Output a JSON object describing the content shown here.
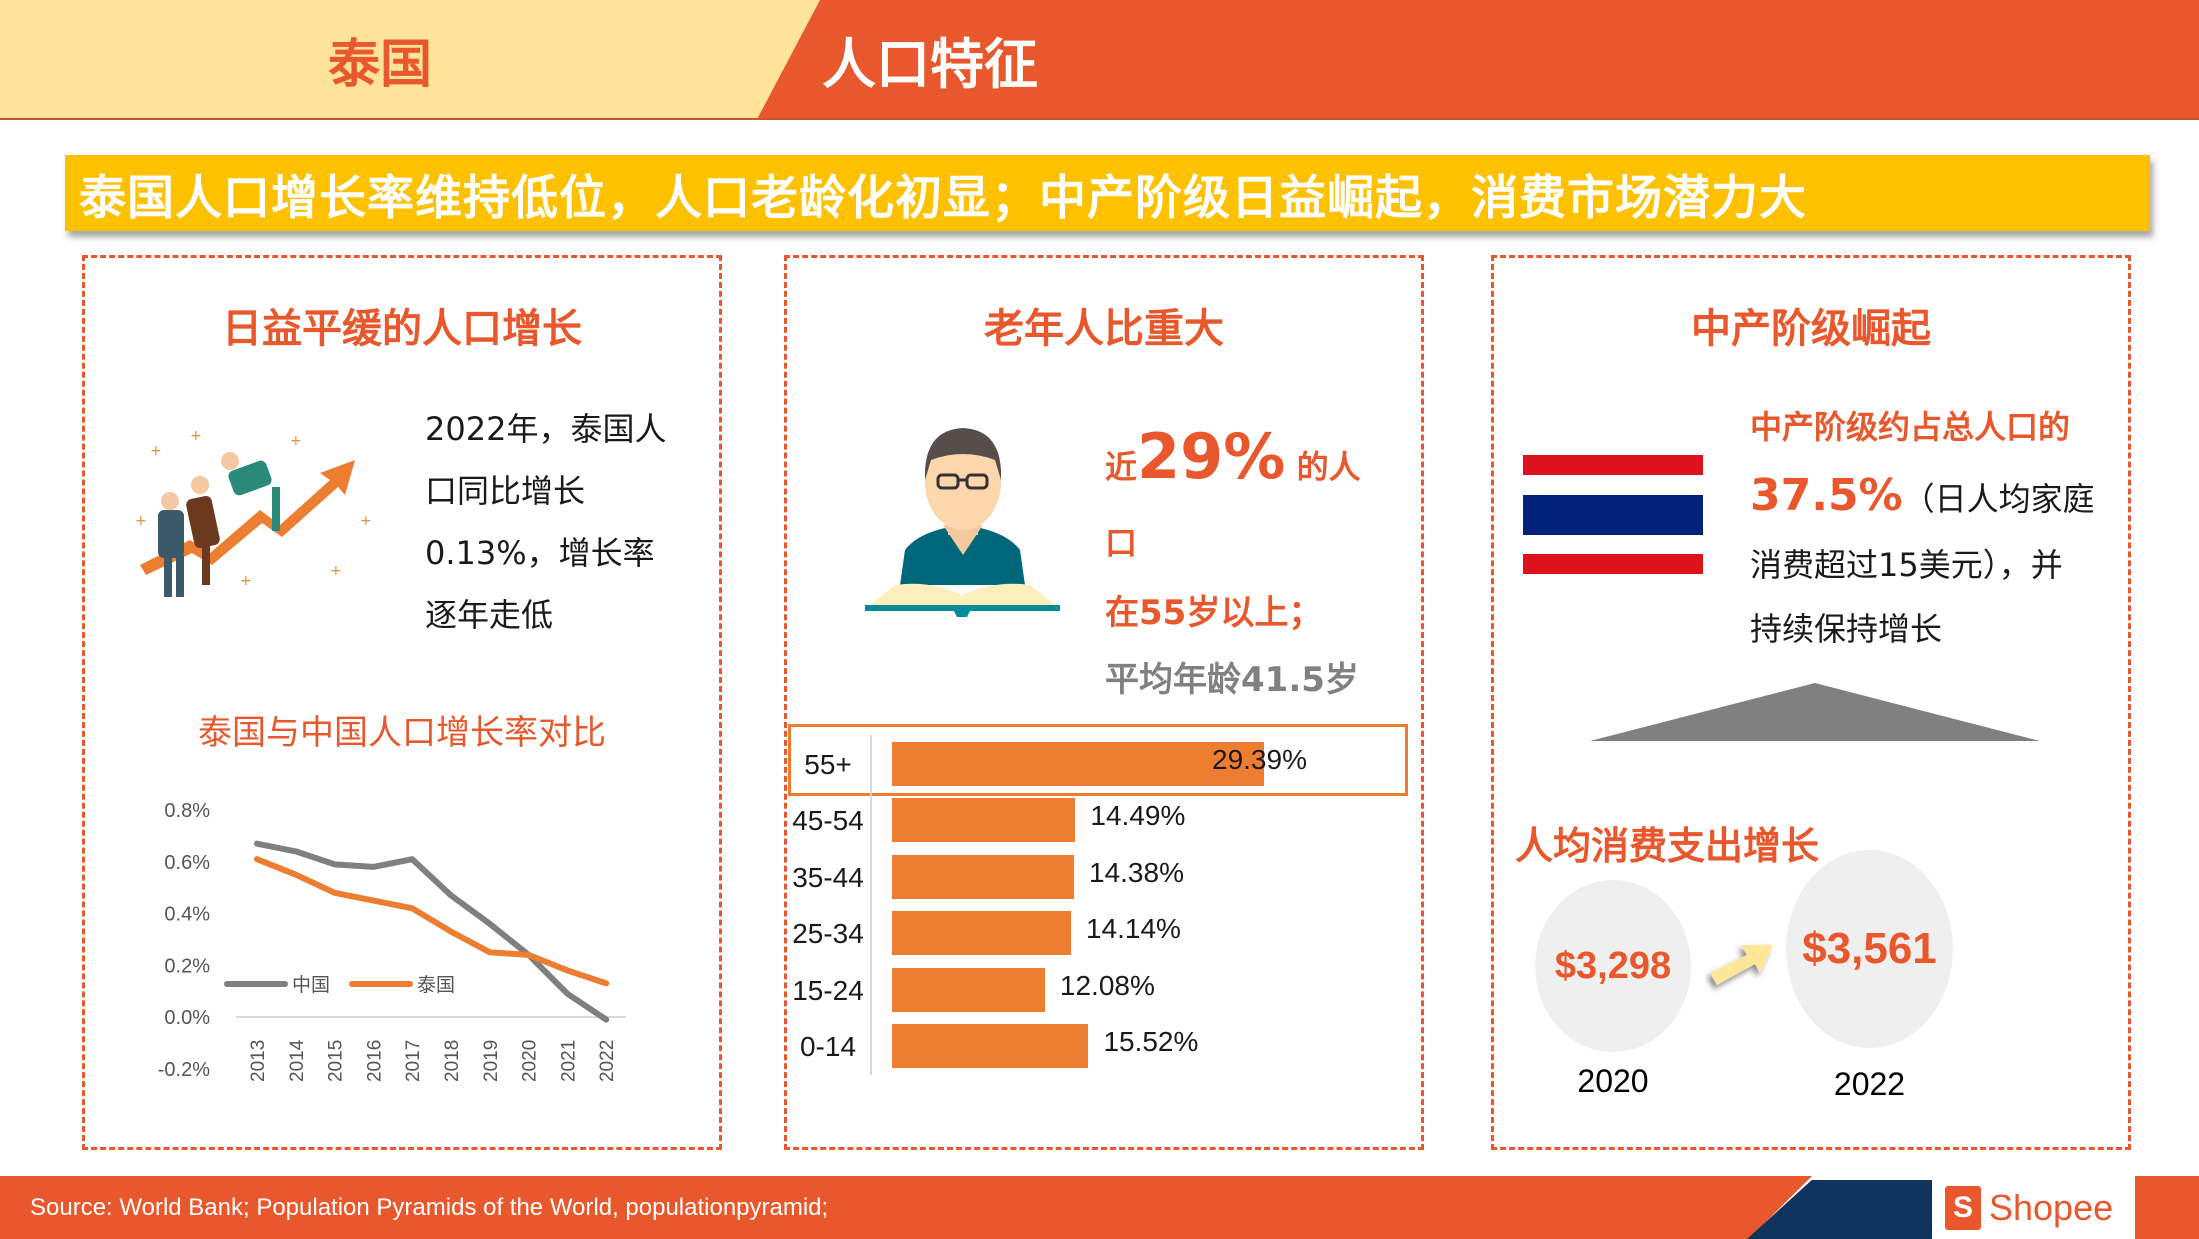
{
  "header": {
    "country": "泰国",
    "title": "人口特征"
  },
  "banner": {
    "text": "泰国人口增长率维持低位，人口老龄化初显；中产阶级日益崛起，消费市场潜力大"
  },
  "panels": {
    "growth": {
      "title": "日益平缓的人口增长",
      "icon": "team-growth-arrow-illustration",
      "text_lines": [
        "2022年，泰国人",
        "口同比增长",
        "0.13%，增长率",
        "逐年走低"
      ],
      "chart_title": "泰国与中国人口增长率对比"
    },
    "aging": {
      "title": "老年人比重大",
      "icon": "reader-with-book-illustration",
      "prefix": "近",
      "big_value": "29%",
      "suffix": " 的人",
      "line2": "口",
      "line3": "在55岁以上；",
      "line4": "平均年龄41.5岁"
    },
    "middle_class": {
      "title": "中产阶级崛起",
      "icon": "thailand-flag",
      "line1": "中产阶级约占总人口的",
      "big_value": "37.5%",
      "line2_rest": "（日人均家庭",
      "line3": "消费超过15美元），并",
      "line4": "持续保持增长",
      "spend_title": "人均消费支出增长",
      "spend": [
        {
          "year": "2020",
          "value": "$3,298"
        },
        {
          "year": "2022",
          "value": "$3,561"
        }
      ]
    }
  },
  "footer": {
    "source": "Source: World Bank; Population Pyramids of the World, populationpyramid;",
    "logo_text": "Shopee",
    "logo_glyph": "S"
  },
  "colors": {
    "brand_orange": "#e8582c",
    "header_yellow": "#fee39a",
    "banner_yellow": "#fec100",
    "bar_orange": "#ed7d31",
    "china_gray": "#7f7f7f",
    "navy": "#11345e"
  },
  "chart_data": [
    {
      "type": "line",
      "title": "泰国与中国人口增长率对比",
      "x": [
        "2013",
        "2014",
        "2015",
        "2016",
        "2017",
        "2018",
        "2019",
        "2020",
        "2021",
        "2022"
      ],
      "series": [
        {
          "name": "中国",
          "color": "#7f7f7f",
          "values": [
            0.67,
            0.64,
            0.59,
            0.58,
            0.61,
            0.47,
            0.36,
            0.24,
            0.09,
            -0.01
          ]
        },
        {
          "name": "泰国",
          "color": "#ed7d31",
          "values": [
            0.61,
            0.55,
            0.48,
            0.45,
            0.42,
            0.33,
            0.25,
            0.24,
            0.18,
            0.13
          ]
        }
      ],
      "yticks": [
        "0.8%",
        "0.6%",
        "0.4%",
        "0.2%",
        "0.0%",
        "-0.2%"
      ],
      "ylim": [
        -0.2,
        0.8
      ],
      "xlabel": "",
      "ylabel": "",
      "grid": false,
      "legend_position": "inside-left"
    },
    {
      "type": "bar",
      "orientation": "horizontal",
      "title": "",
      "categories": [
        "55+",
        "45-54",
        "35-44",
        "25-34",
        "15-24",
        "0-14"
      ],
      "values": [
        29.39,
        14.49,
        14.38,
        14.14,
        12.08,
        15.52
      ],
      "labels": [
        "29.39%",
        "14.49%",
        "14.38%",
        "14.14%",
        "12.08%",
        "15.52%"
      ],
      "highlight": "55+",
      "xlim": [
        0,
        30
      ]
    }
  ]
}
